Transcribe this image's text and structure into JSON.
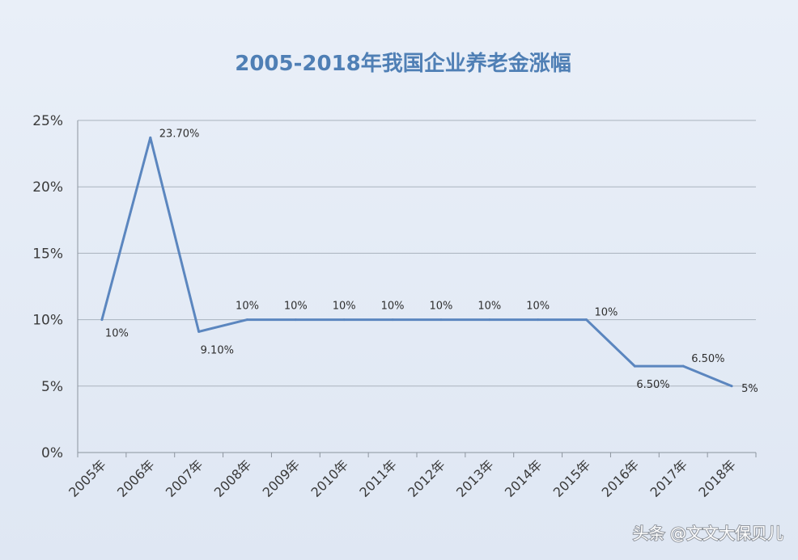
{
  "chart_data": {
    "type": "line",
    "title": "2005-2018年我国企业养老金涨幅",
    "xlabel": "",
    "ylabel": "",
    "categories": [
      "2005年",
      "2006年",
      "2007年",
      "2008年",
      "2009年",
      "2010年",
      "2011年",
      "2012年",
      "2013年",
      "2014年",
      "2015年",
      "2016年",
      "2017年",
      "2018年"
    ],
    "yticks": [
      "0%",
      "5%",
      "10%",
      "15%",
      "20%",
      "25%"
    ],
    "ylim": [
      0,
      25
    ],
    "grid": true,
    "series": [
      {
        "values": [
          10,
          23.7,
          9.1,
          10,
          10,
          10,
          10,
          10,
          10,
          10,
          10,
          6.5,
          6.5,
          5
        ],
        "data_labels": [
          "10%",
          "23.70%",
          "9.10%",
          "10%",
          "10%",
          "10%",
          "10%",
          "10%",
          "10%",
          "10%",
          "10%",
          "6.50%",
          "6.50%",
          "5%"
        ],
        "color": "#5b86bf"
      }
    ]
  },
  "watermark": "头条 @文文大保贝儿"
}
